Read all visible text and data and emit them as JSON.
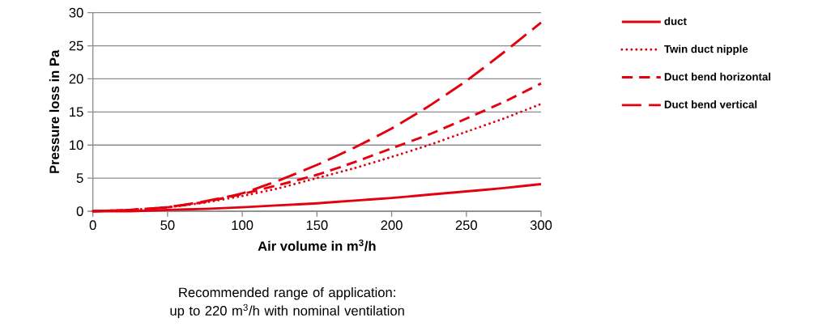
{
  "chart_data": {
    "type": "line",
    "xlabel": "Air volume in m$^{3}$/h",
    "ylabel": "Pressure loss in Pa",
    "annotations": [
      "Recommended range of application: up to 220 m$^{3}$/h with nominal ventilation"
    ],
    "x": [
      0,
      25,
      50,
      75,
      100,
      125,
      150,
      175,
      200,
      225,
      250,
      275,
      300
    ],
    "series": [
      {
        "name": "duct",
        "color": "#e3000f",
        "line_style": "solid",
        "values": [
          0,
          0,
          0.2,
          0.35,
          0.6,
          0.9,
          1.2,
          1.6,
          2.0,
          2.5,
          3.0,
          3.5,
          4.1
        ]
      },
      {
        "name": "Twin duct nipple",
        "color": "#e3000f",
        "line_style": "dotted",
        "values": [
          0,
          0.2,
          0.6,
          1.3,
          2.3,
          3.5,
          5.0,
          6.5,
          8.2,
          10.0,
          12.0,
          14.0,
          16.2
        ]
      },
      {
        "name": "Duct bend horizontal",
        "color": "#e3000f",
        "line_style": "dashed",
        "values": [
          0,
          0.2,
          0.6,
          1.4,
          2.6,
          4.0,
          5.5,
          7.4,
          9.5,
          11.6,
          14.0,
          16.5,
          19.3
        ]
      },
      {
        "name": "Duct bend vertical",
        "color": "#e3000f",
        "line_style": "dashed",
        "values": [
          0,
          0.2,
          0.6,
          1.5,
          2.7,
          4.7,
          7.0,
          9.6,
          12.5,
          15.9,
          19.7,
          24.0,
          28.5
        ]
      }
    ],
    "xlim": [
      0,
      300
    ],
    "xticks": [
      0,
      50,
      100,
      150,
      200,
      250,
      300
    ],
    "ylim": [
      0,
      30
    ],
    "yticks": [
      0,
      5,
      10,
      15,
      20,
      25,
      30
    ],
    "grid": "y",
    "legend": "right",
    "marker": "none"
  }
}
